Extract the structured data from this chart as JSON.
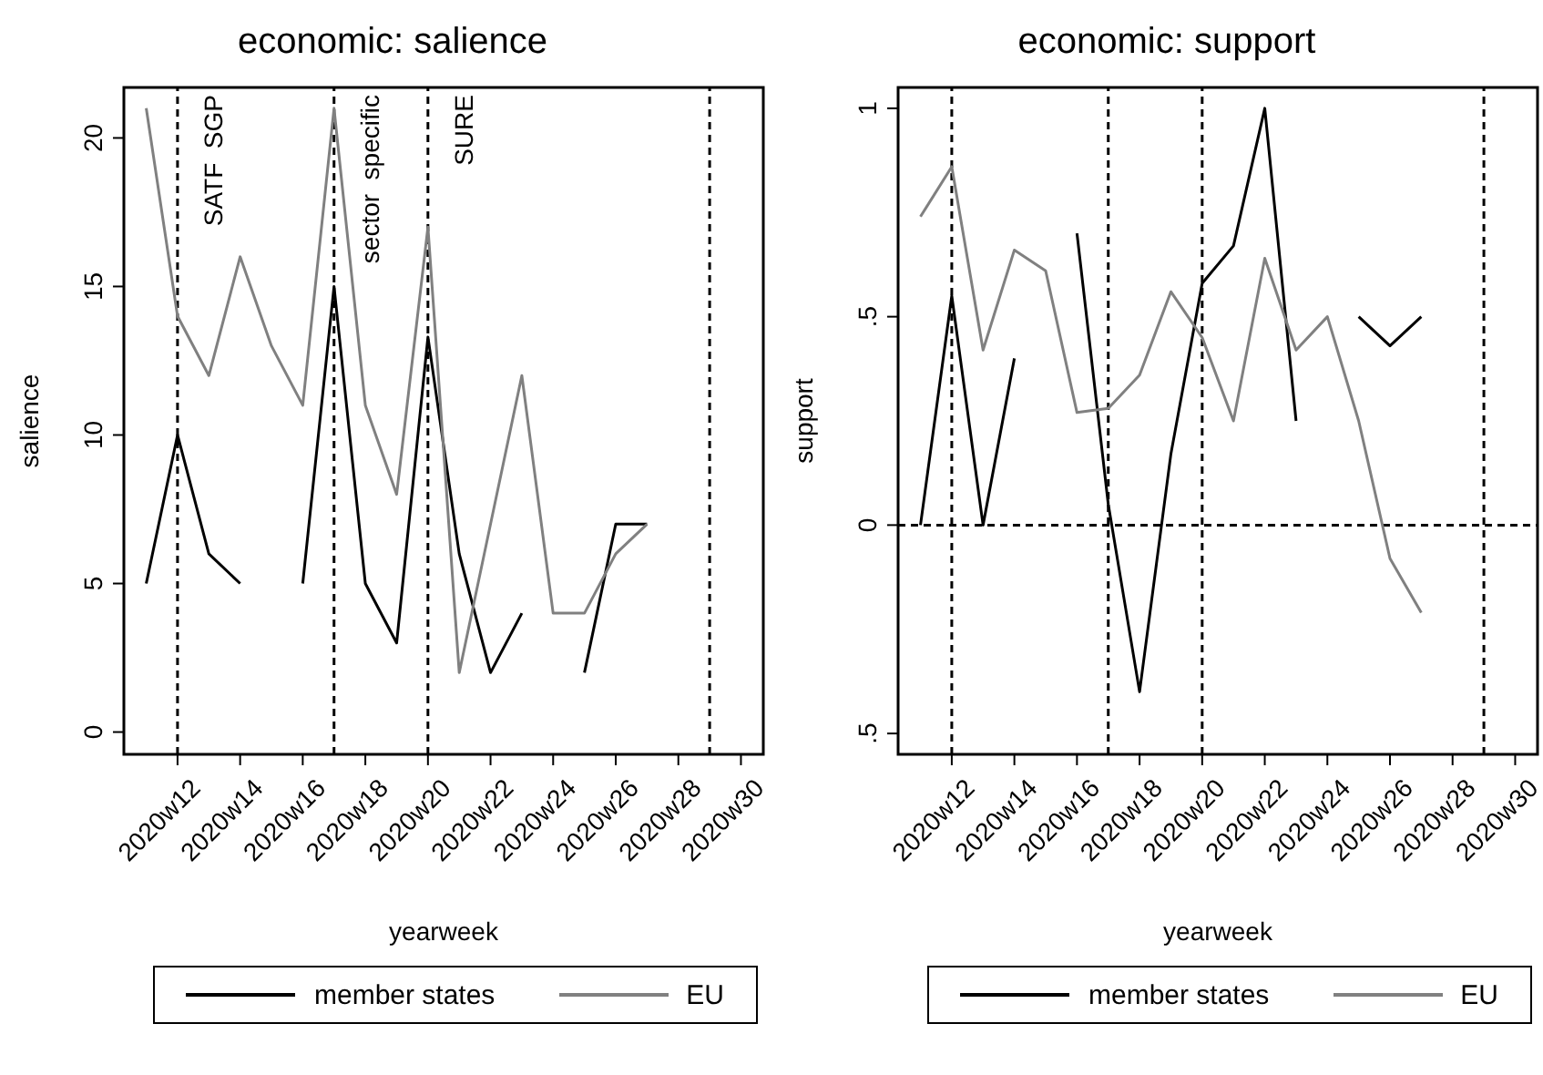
{
  "chart_data": [
    {
      "type": "line",
      "title": "economic: salience",
      "xlabel": "yearweek",
      "ylabel": "salience",
      "x": [
        "2020-03-11",
        "2020-03-18",
        "2020-03-25",
        "2020-04-01",
        "2020-04-08",
        "2020-04-15",
        "2020-04-22",
        "2020-04-29",
        "2020-05-06",
        "2020-05-13",
        "2020-05-20",
        "2020-05-27",
        "2020-06-03",
        "2020-06-10",
        "2020-06-17",
        "2020-06-24",
        "2020-07-01"
      ],
      "xlim": [
        "2020-03-06",
        "2020-07-27"
      ],
      "xticks": [
        {
          "value": "2020-03-18",
          "label": "2020w12"
        },
        {
          "value": "2020-04-01",
          "label": "2020w14"
        },
        {
          "value": "2020-04-15",
          "label": "2020w16"
        },
        {
          "value": "2020-04-29",
          "label": "2020w18"
        },
        {
          "value": "2020-05-13",
          "label": "2020w20"
        },
        {
          "value": "2020-05-27",
          "label": "2020w22"
        },
        {
          "value": "2020-06-10",
          "label": "2020w24"
        },
        {
          "value": "2020-06-24",
          "label": "2020w26"
        },
        {
          "value": "2020-07-08",
          "label": "2020w28"
        },
        {
          "value": "2020-07-22",
          "label": "2020w30"
        }
      ],
      "ylim": [
        -0.75,
        21.7
      ],
      "yticks": [
        0,
        5,
        10,
        15,
        20
      ],
      "grid": false,
      "legend": "bottom",
      "line_style": "solid",
      "marker": "none",
      "series": [
        {
          "name": "member states",
          "color": "#000000",
          "values": [
            5,
            10,
            6,
            5,
            null,
            5,
            15,
            5,
            3,
            13.3,
            6,
            2,
            4,
            null,
            2,
            7,
            7
          ]
        },
        {
          "name": "EU",
          "color": "#808080",
          "values": [
            21,
            14,
            12,
            16,
            13,
            11,
            21,
            11,
            8,
            17,
            2,
            7,
            12,
            4,
            4,
            6,
            7
          ]
        }
      ],
      "ref_lines": [
        {
          "axis": "x",
          "value": "2020-03-18",
          "label": "SATF  SGP",
          "line_style": "dashed",
          "color": "#000000"
        },
        {
          "axis": "x",
          "value": "2020-04-22",
          "label": "sector  specific",
          "line_style": "dashed",
          "color": "#000000"
        },
        {
          "axis": "x",
          "value": "2020-05-13",
          "label": "SURE",
          "line_style": "dashed",
          "color": "#000000"
        },
        {
          "axis": "x",
          "value": "2020-07-15",
          "line_style": "dashed",
          "color": "#000000"
        }
      ]
    },
    {
      "type": "line",
      "title": "economic: support",
      "xlabel": "yearweek",
      "ylabel": "support",
      "x": [
        "2020-03-11",
        "2020-03-18",
        "2020-03-25",
        "2020-04-01",
        "2020-04-08",
        "2020-04-15",
        "2020-04-22",
        "2020-04-29",
        "2020-05-06",
        "2020-05-13",
        "2020-05-20",
        "2020-05-27",
        "2020-06-03",
        "2020-06-10",
        "2020-06-17",
        "2020-06-24",
        "2020-07-01"
      ],
      "xlim": [
        "2020-03-06",
        "2020-07-27"
      ],
      "xticks": [
        {
          "value": "2020-03-18",
          "label": "2020w12"
        },
        {
          "value": "2020-04-01",
          "label": "2020w14"
        },
        {
          "value": "2020-04-15",
          "label": "2020w16"
        },
        {
          "value": "2020-04-29",
          "label": "2020w18"
        },
        {
          "value": "2020-05-13",
          "label": "2020w20"
        },
        {
          "value": "2020-05-27",
          "label": "2020w22"
        },
        {
          "value": "2020-06-10",
          "label": "2020w24"
        },
        {
          "value": "2020-06-24",
          "label": "2020w26"
        },
        {
          "value": "2020-07-08",
          "label": "2020w28"
        },
        {
          "value": "2020-07-22",
          "label": "2020w30"
        }
      ],
      "ylim": [
        -0.55,
        1.05
      ],
      "yticks": [
        {
          "value": -0.5,
          "label": ".5"
        },
        {
          "value": 0,
          "label": "0"
        },
        {
          "value": 0.5,
          "label": ".5"
        },
        {
          "value": 1,
          "label": "1"
        }
      ],
      "grid": false,
      "legend": "bottom",
      "line_style": "solid",
      "marker": "none",
      "series": [
        {
          "name": "member states",
          "color": "#000000",
          "values": [
            0,
            0.55,
            0,
            0.4,
            null,
            0.7,
            0.05,
            -0.4,
            0.17,
            0.58,
            0.67,
            1,
            0.25,
            null,
            0.5,
            0.43,
            0.5
          ]
        },
        {
          "name": "EU",
          "color": "#808080",
          "values": [
            0.74,
            0.86,
            0.42,
            0.66,
            0.61,
            0.27,
            0.28,
            0.36,
            0.56,
            0.45,
            0.25,
            0.64,
            0.42,
            0.5,
            0.25,
            -0.08,
            -0.21
          ]
        }
      ],
      "ref_lines": [
        {
          "axis": "x",
          "value": "2020-03-18",
          "line_style": "dashed",
          "color": "#000000"
        },
        {
          "axis": "x",
          "value": "2020-04-22",
          "line_style": "dashed",
          "color": "#000000"
        },
        {
          "axis": "x",
          "value": "2020-05-13",
          "line_style": "dashed",
          "color": "#000000"
        },
        {
          "axis": "x",
          "value": "2020-07-15",
          "line_style": "dashed",
          "color": "#000000"
        },
        {
          "axis": "y",
          "value": 0,
          "line_style": "dashed",
          "color": "#000000"
        }
      ]
    }
  ]
}
